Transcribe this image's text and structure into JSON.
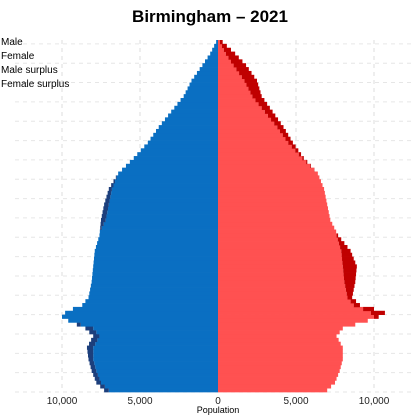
{
  "chart_data": {
    "type": "population-pyramid",
    "title": "Birmingham – 2021",
    "xlabel": "Population",
    "ylabel": "",
    "xlim": [
      -10500,
      10500
    ],
    "x_ticks": [
      {
        "value": -10000,
        "label": "10,000"
      },
      {
        "value": -5000,
        "label": "5,000"
      },
      {
        "value": 0,
        "label": "0"
      },
      {
        "value": 5000,
        "label": "5,000"
      },
      {
        "value": 10000,
        "label": "10,000"
      }
    ],
    "grid": true,
    "legend_position": "top-left",
    "legend": [
      "Male",
      "Female",
      "Male surplus",
      "Female surplus"
    ],
    "colors": {
      "male": "#0a6fc2",
      "female": "#ff5151",
      "male_surplus": "#1c3f7c",
      "female_surplus": "#c00000"
    },
    "age_range": [
      0,
      90
    ],
    "male_anchors": [
      [
        0,
        7300
      ],
      [
        2,
        7800
      ],
      [
        5,
        8100
      ],
      [
        8,
        8300
      ],
      [
        11,
        8400
      ],
      [
        14,
        8000
      ],
      [
        16,
        8500
      ],
      [
        18,
        9600
      ],
      [
        19,
        10000
      ],
      [
        20,
        9800
      ],
      [
        21,
        9300
      ],
      [
        22,
        8700
      ],
      [
        24,
        8300
      ],
      [
        28,
        8100
      ],
      [
        32,
        8000
      ],
      [
        36,
        7900
      ],
      [
        40,
        7600
      ],
      [
        44,
        7500
      ],
      [
        48,
        7300
      ],
      [
        52,
        7000
      ],
      [
        56,
        6400
      ],
      [
        60,
        5400
      ],
      [
        64,
        4500
      ],
      [
        68,
        3800
      ],
      [
        72,
        3000
      ],
      [
        76,
        2200
      ],
      [
        80,
        1700
      ],
      [
        84,
        1000
      ],
      [
        87,
        500
      ],
      [
        90,
        120
      ]
    ],
    "female_anchors": [
      [
        0,
        7000
      ],
      [
        2,
        7500
      ],
      [
        5,
        7800
      ],
      [
        8,
        8000
      ],
      [
        11,
        8000
      ],
      [
        14,
        7600
      ],
      [
        16,
        8000
      ],
      [
        18,
        9600
      ],
      [
        19,
        10300
      ],
      [
        20,
        10700
      ],
      [
        21,
        10000
      ],
      [
        22,
        9100
      ],
      [
        24,
        8600
      ],
      [
        28,
        8800
      ],
      [
        32,
        8900
      ],
      [
        36,
        8500
      ],
      [
        40,
        7700
      ],
      [
        44,
        7200
      ],
      [
        48,
        7000
      ],
      [
        52,
        6800
      ],
      [
        56,
        6400
      ],
      [
        60,
        5500
      ],
      [
        64,
        4800
      ],
      [
        68,
        4200
      ],
      [
        72,
        3500
      ],
      [
        76,
        2800
      ],
      [
        80,
        2500
      ],
      [
        84,
        1800
      ],
      [
        87,
        1100
      ],
      [
        90,
        300
      ]
    ]
  }
}
